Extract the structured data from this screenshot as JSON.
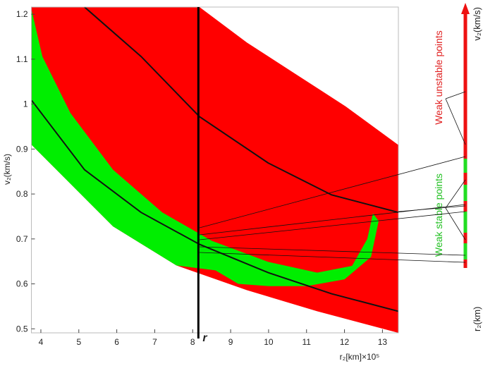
{
  "chart_data": {
    "type": "region",
    "xlabel": "r₂[km]×10⁵",
    "ylabel": "v₂(km/s)",
    "xlim": [
      3.75,
      13.42
    ],
    "ylim": [
      0.491,
      1.216
    ],
    "xticks": [
      4,
      5,
      6,
      7,
      8,
      9,
      10,
      11,
      12,
      13
    ],
    "yticks": [
      0.5,
      0.6,
      0.7,
      0.8,
      0.9,
      1,
      1.1,
      1.2
    ],
    "regions": [
      {
        "color": "#ff0000",
        "x": [
          3.75,
          8.18,
          9.43,
          10.73,
          12.03,
          13.42,
          13.42,
          11.28,
          9.43,
          7.57,
          5.9,
          4.6,
          3.76
        ],
        "y": [
          1.216,
          1.216,
          1.137,
          1.066,
          0.995,
          0.909,
          0.491,
          0.539,
          0.586,
          0.641,
          0.728,
          0.838,
          0.909
        ]
      },
      {
        "color": "#00ee00",
        "x": [
          3.76,
          4.04,
          4.78,
          5.9,
          7.2,
          8.5,
          9.99,
          11.28,
          12.2,
          12.6,
          12.75,
          12.9,
          12.7,
          12,
          11,
          10,
          9.2,
          8.6,
          7.57,
          5.9,
          4.6,
          3.76
        ],
        "y": [
          1.208,
          1.106,
          0.98,
          0.854,
          0.759,
          0.696,
          0.649,
          0.625,
          0.64,
          0.7,
          0.757,
          0.74,
          0.66,
          0.61,
          0.595,
          0.595,
          0.6,
          0.63,
          0.641,
          0.728,
          0.838,
          0.909
        ]
      }
    ],
    "series": [
      {
        "color": "#111111",
        "x": [
          5.15,
          6.64,
          8.18,
          9.99,
          11.66,
          13.42
        ],
        "values": [
          1.216,
          1.106,
          0.972,
          0.869,
          0.798,
          0.759
        ]
      },
      {
        "color": "#111111",
        "x": [
          3.76,
          5.15,
          6.64,
          8.18,
          9.99,
          11.66,
          13.42
        ],
        "values": [
          1.008,
          0.854,
          0.759,
          0.688,
          0.625,
          0.578,
          0.539
        ]
      }
    ],
    "vline": {
      "x": 8.15,
      "label": "r"
    },
    "annotations": {
      "unstable": "Weak unstable points",
      "stable": "Weak stable points",
      "v_axis": "v₂(km/s)",
      "r_axis": "r₂(km)"
    }
  }
}
